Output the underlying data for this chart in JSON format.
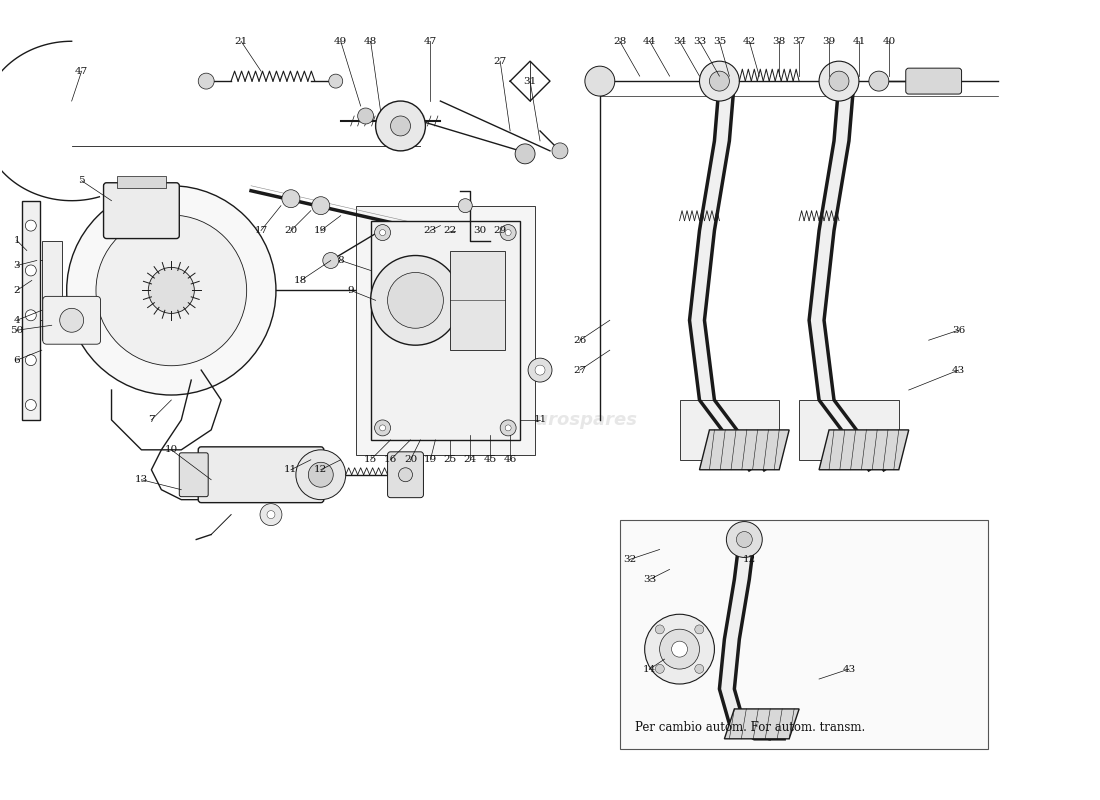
{
  "bg_color": "#ffffff",
  "line_color": "#1a1a1a",
  "watermark_color": "#d0d0d0",
  "annotation_color": "#111111",
  "fig_width": 11.0,
  "fig_height": 8.0,
  "dpi": 100,
  "caption": "Per cambio autom. For autom. transm.",
  "caption_fontsize": 8.5,
  "label_fontsize": 7.5
}
